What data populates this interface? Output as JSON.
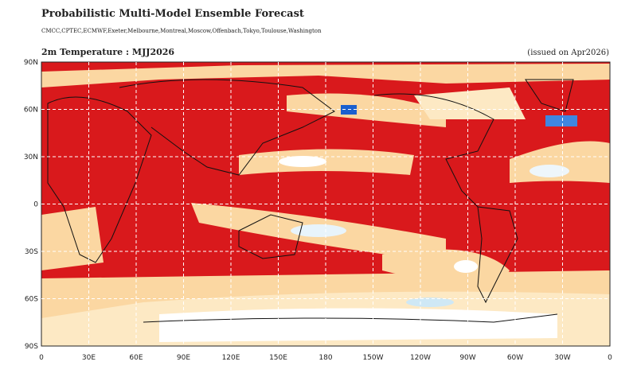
{
  "header": {
    "title": "Probabilistic Multi-Model Ensemble Forecast",
    "subtitle": "CMCC,CPTEC,ECMWF,Exeter,Melbourne,Montreal,Moscow,Offenbach,Tokyo,Toulouse,Washington"
  },
  "map": {
    "title": "2m Temperature : MJJ2026",
    "issued": "(issued on Apr2026)",
    "lat_labels": [
      "90N",
      "60N",
      "30N",
      "0",
      "30S",
      "60S",
      "90S"
    ],
    "lon_labels": [
      "0",
      "30E",
      "60E",
      "90E",
      "120E",
      "150E",
      "180",
      "150W",
      "120W",
      "90W",
      "60W",
      "30W",
      "0"
    ]
  }
}
